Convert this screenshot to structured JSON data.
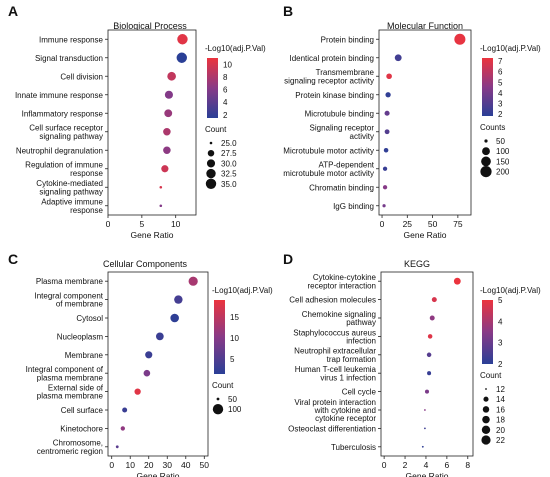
{
  "chart_data": [
    {
      "type": "scatter",
      "panel_letter": "A",
      "title": "Biological Process",
      "xlabel": "Gene Ratio",
      "xlim": [
        0,
        13
      ],
      "xticks": [
        0,
        5,
        10
      ],
      "categories": [
        "Immune response",
        "Signal transduction",
        "Cell division",
        "Innate immune response",
        "Inflammatory response",
        "Cell surface receptor signaling pathway",
        "Neutrophil degranulation",
        "Regulation of immune response",
        "Cytokine-mediated signaling pathway",
        "Adaptive immune response"
      ],
      "x": [
        11.0,
        10.9,
        9.4,
        9.0,
        8.9,
        8.7,
        8.7,
        8.4,
        7.8,
        7.8
      ],
      "neglog10_adjP": [
        10.5,
        1.5,
        9.0,
        6.0,
        7.0,
        8.0,
        6.5,
        9.5,
        10.0,
        6.0
      ],
      "count": [
        35.0,
        35.0,
        31.0,
        30.0,
        29.5,
        29.0,
        29.0,
        28.5,
        25.0,
        25.0
      ],
      "color_legend": {
        "title": "-Log10(adj.P.Val)",
        "ticks": [
          10,
          8,
          6,
          4,
          2
        ],
        "range": [
          1.5,
          11
        ]
      },
      "size_legend": {
        "title": "Count",
        "ticks": [
          "25.0",
          "27.5",
          "30.0",
          "32.5",
          "35.0"
        ]
      }
    },
    {
      "type": "scatter",
      "panel_letter": "B",
      "title": "Molecular Function",
      "xlabel": "Gene Ratio",
      "xlim": [
        -3,
        88
      ],
      "xticks": [
        0,
        25,
        50,
        75
      ],
      "categories": [
        "Protein binding",
        "Identical protein binding",
        "Transmembrane signaling receptor activity",
        "Protein kinase binding",
        "Microtubule binding",
        "Signaling receptor activity",
        "Microtubule motor activity",
        "ATP-dependent microtubule motor activity",
        "Chromatin binding",
        "IgG binding"
      ],
      "x": [
        77,
        16,
        7,
        6,
        5,
        5,
        4,
        3,
        3,
        2
      ],
      "neglog10_adjP": [
        7.2,
        2.5,
        7.0,
        2.0,
        3.5,
        3.0,
        2.0,
        2.2,
        4.5,
        4.0
      ],
      "count": [
        210,
        50,
        25,
        20,
        18,
        15,
        12,
        10,
        10,
        6
      ],
      "color_legend": {
        "title": "-Log10(adj.P.Val)",
        "ticks": [
          7,
          6,
          5,
          4,
          3,
          2
        ],
        "range": [
          1.8,
          7.3
        ]
      },
      "size_legend": {
        "title": "Counts",
        "ticks": [
          "50",
          "100",
          "150",
          "200"
        ]
      }
    },
    {
      "type": "scatter",
      "panel_letter": "C",
      "title": "Cellular Components",
      "xlabel": "Gene Ratio",
      "xlim": [
        -2,
        52
      ],
      "xticks": [
        0,
        10,
        20,
        30,
        40,
        50
      ],
      "categories": [
        "Plasma membrane",
        "Integral component of membrane",
        "Cytosol",
        "Nucleoplasm",
        "Membrane",
        "Integral component of plasma membrane",
        "External side of plasma membrane",
        "Cell surface",
        "Kinetochore",
        "Chromosome, centromeric region"
      ],
      "x": [
        44,
        36,
        34,
        26,
        20,
        19,
        14,
        7,
        6,
        3
      ],
      "neglog10_adjP": [
        13,
        4,
        2,
        3,
        3,
        9,
        18,
        3,
        11,
        6
      ],
      "count": [
        115,
        95,
        100,
        80,
        70,
        60,
        55,
        40,
        35,
        30
      ],
      "color_legend": {
        "title": "-Log10(adj.P.Val)",
        "ticks": [
          15,
          10,
          5
        ],
        "range": [
          1.5,
          19
        ]
      },
      "size_legend": {
        "title": "Count",
        "ticks": [
          "50",
          "100"
        ]
      }
    },
    {
      "type": "scatter",
      "panel_letter": "D",
      "title": "KEGG",
      "xlabel": "Gene Ratio",
      "xlim": [
        -0.3,
        8.5
      ],
      "xticks": [
        0,
        2,
        4,
        6,
        8
      ],
      "categories": [
        "Cytokine-cytokine receptor interaction",
        "Cell adhesion molecules",
        "Chemokine signaling pathway",
        "Staphylococcus aureus infection",
        "Neutrophil extracellular trap formation",
        "Human T-cell leukemia virus 1 infection",
        "Cell cycle",
        "Viral protein interaction with cytokine and cytokine receptor",
        "Osteoclast differentiation",
        "Tuberculosis"
      ],
      "x": [
        7.0,
        4.8,
        4.6,
        4.4,
        4.3,
        4.3,
        4.1,
        3.9,
        3.9,
        3.7
      ],
      "neglog10_adjP": [
        5.0,
        4.7,
        3.6,
        4.8,
        2.7,
        2.2,
        3.3,
        3.5,
        2.3,
        2.1
      ],
      "count": [
        22,
        16,
        16,
        15,
        15,
        14,
        14,
        12,
        12,
        12
      ],
      "color_legend": {
        "title": "-Log10(adj.P.Val)",
        "ticks": [
          5,
          4,
          3,
          2
        ],
        "range": [
          2,
          5
        ]
      },
      "size_legend": {
        "title": "Count",
        "ticks": [
          "12",
          "14",
          "16",
          "18",
          "20",
          "22"
        ]
      }
    }
  ]
}
